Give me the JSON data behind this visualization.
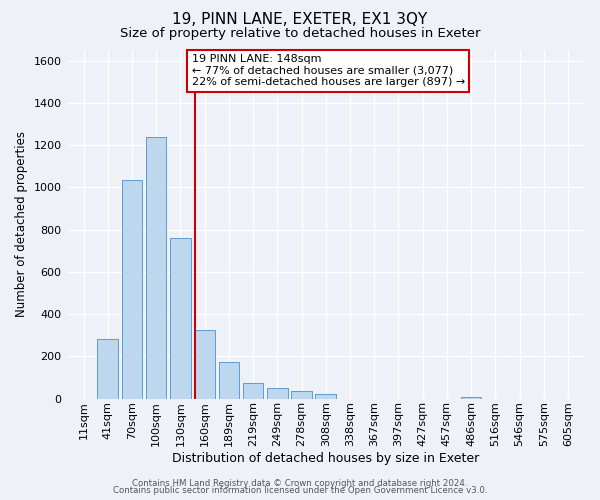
{
  "title": "19, PINN LANE, EXETER, EX1 3QY",
  "subtitle": "Size of property relative to detached houses in Exeter",
  "xlabel": "Distribution of detached houses by size in Exeter",
  "ylabel": "Number of detached properties",
  "bar_labels": [
    "11sqm",
    "41sqm",
    "70sqm",
    "100sqm",
    "130sqm",
    "160sqm",
    "189sqm",
    "219sqm",
    "249sqm",
    "278sqm",
    "308sqm",
    "338sqm",
    "367sqm",
    "397sqm",
    "427sqm",
    "457sqm",
    "486sqm",
    "516sqm",
    "546sqm",
    "575sqm",
    "605sqm"
  ],
  "bar_values": [
    0,
    280,
    1035,
    1240,
    760,
    325,
    175,
    75,
    50,
    35,
    20,
    0,
    0,
    0,
    0,
    0,
    5,
    0,
    0,
    0,
    0
  ],
  "bar_color": "#bdd7ee",
  "bar_edge_color": "#5b9bd5",
  "vline_x": 4.61,
  "vline_color": "#cc0000",
  "annotation_title": "19 PINN LANE: 148sqm",
  "annotation_line1": "← 77% of detached houses are smaller (3,077)",
  "annotation_line2": "22% of semi-detached houses are larger (897) →",
  "annotation_box_color": "#ffffff",
  "annotation_box_edge": "#cc0000",
  "ylim": [
    0,
    1650
  ],
  "yticks": [
    0,
    200,
    400,
    600,
    800,
    1000,
    1200,
    1400,
    1600
  ],
  "footer1": "Contains HM Land Registry data © Crown copyright and database right 2024.",
  "footer2": "Contains public sector information licensed under the Open Government Licence v3.0.",
  "bg_color": "#eef2f8",
  "plot_bg_color": "#eef2f8",
  "title_fontsize": 11,
  "subtitle_fontsize": 9.5,
  "grid_color": "#ffffff"
}
